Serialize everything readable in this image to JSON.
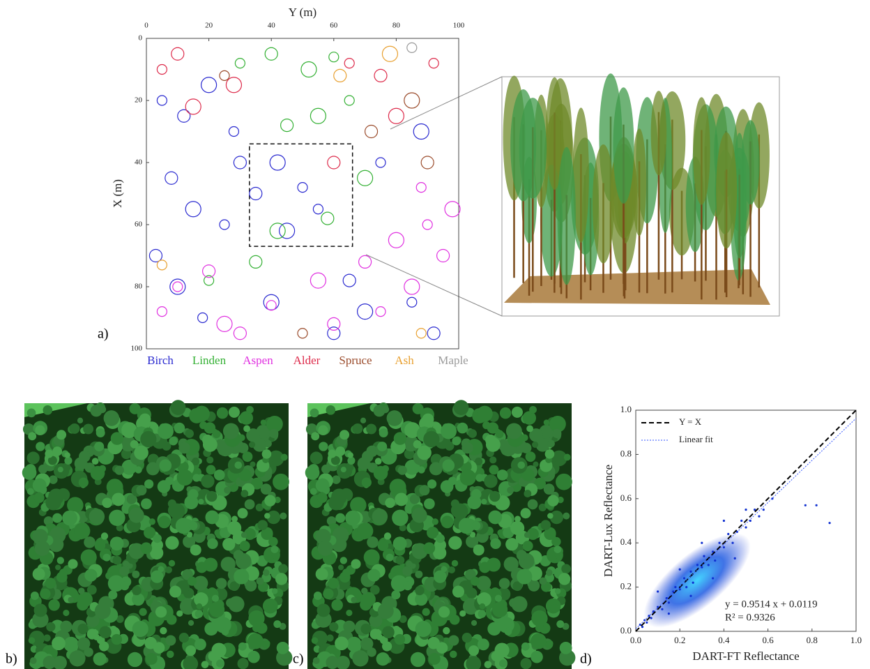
{
  "panel_labels": [
    "a)",
    "b)",
    "c)",
    "d)"
  ],
  "chart_data": [
    {
      "type": "scatter",
      "xlabel": "Y (m)",
      "ylabel": "X (m)",
      "xaxis_position": "top",
      "xlim": [
        0,
        100
      ],
      "xticks": [
        0,
        20,
        40,
        60,
        80,
        100
      ],
      "ylim": [
        100,
        0
      ],
      "yticks": [
        0,
        20,
        40,
        60,
        80,
        100
      ],
      "box": {
        "x": [
          33,
          66
        ],
        "y": [
          34,
          67
        ]
      },
      "series": [
        {
          "name": "Birch",
          "color": "#2a2ad0",
          "x": [
            5,
            12,
            20,
            28,
            8,
            15,
            25,
            35,
            42,
            50,
            3,
            10,
            18,
            60,
            70,
            85,
            92,
            45,
            55,
            30,
            88,
            75,
            65,
            40
          ],
          "values": [
            20,
            25,
            15,
            30,
            45,
            55,
            60,
            50,
            40,
            48,
            70,
            80,
            90,
            95,
            88,
            85,
            95,
            62,
            55,
            40,
            30,
            40,
            78,
            85
          ]
        },
        {
          "name": "Linden",
          "color": "#33b033",
          "x": [
            30,
            40,
            52,
            60,
            45,
            55,
            65,
            58,
            42,
            20,
            35,
            70
          ],
          "values": [
            8,
            5,
            10,
            6,
            28,
            25,
            20,
            58,
            62,
            78,
            72,
            45
          ]
        },
        {
          "name": "Aspen",
          "color": "#e030e0",
          "x": [
            10,
            20,
            25,
            5,
            70,
            80,
            90,
            95,
            85,
            75,
            60,
            55,
            40,
            30,
            98,
            88
          ],
          "values": [
            80,
            75,
            92,
            88,
            72,
            65,
            60,
            70,
            80,
            88,
            92,
            78,
            86,
            95,
            55,
            48
          ]
        },
        {
          "name": "Alder",
          "color": "#dd2a4a",
          "x": [
            5,
            10,
            15,
            65,
            75,
            80,
            92,
            60,
            28
          ],
          "values": [
            10,
            5,
            22,
            8,
            12,
            25,
            8,
            40,
            15
          ]
        },
        {
          "name": "Spruce",
          "color": "#9a4a2a",
          "x": [
            25,
            72,
            85,
            50,
            90
          ],
          "values": [
            12,
            30,
            20,
            95,
            40
          ]
        },
        {
          "name": "Ash",
          "color": "#e8a030",
          "x": [
            5,
            62,
            78,
            88
          ],
          "values": [
            73,
            12,
            5,
            95
          ]
        },
        {
          "name": "Maple",
          "color": "#9a9a9a",
          "x": [
            85
          ],
          "values": [
            3
          ]
        }
      ]
    },
    {
      "type": "scatter",
      "xlabel": "DART-FT Reflectance",
      "ylabel": "DART-Lux Reflectance",
      "xlim": [
        0,
        1
      ],
      "xticks": [
        {
          "value": 0,
          "label": "0.0"
        },
        {
          "value": 0.2,
          "label": "0.2"
        },
        {
          "value": 0.4,
          "label": "0.4"
        },
        {
          "value": 0.6,
          "label": "0.6"
        },
        {
          "value": 0.8,
          "label": "0.8"
        },
        {
          "value": 1,
          "label": "1.0"
        }
      ],
      "ylim": [
        0,
        1
      ],
      "yticks": [
        {
          "value": 0,
          "label": "0.0"
        },
        {
          "value": 0.2,
          "label": "0.2"
        },
        {
          "value": 0.4,
          "label": "0.4"
        },
        {
          "value": 0.6,
          "label": "0.6"
        },
        {
          "value": 0.8,
          "label": "0.8"
        },
        {
          "value": 1,
          "label": "1.0"
        }
      ],
      "points": {
        "color": "#1030d0",
        "x": [
          0.02,
          0.03,
          0.04,
          0.05,
          0.06,
          0.07,
          0.08,
          0.1,
          0.12,
          0.14,
          0.15,
          0.17,
          0.18,
          0.2,
          0.22,
          0.23,
          0.25,
          0.26,
          0.28,
          0.3,
          0.31,
          0.33,
          0.35,
          0.36,
          0.38,
          0.4,
          0.42,
          0.44,
          0.46,
          0.48,
          0.5,
          0.52,
          0.54,
          0.56,
          0.58,
          0.62,
          0.77,
          0.82,
          0.88,
          0.1,
          0.15,
          0.2,
          0.25,
          0.3,
          0.35,
          0.4,
          0.45,
          0.5
        ],
        "values": [
          0.03,
          0.02,
          0.05,
          0.04,
          0.07,
          0.06,
          0.09,
          0.11,
          0.1,
          0.15,
          0.13,
          0.18,
          0.2,
          0.19,
          0.24,
          0.2,
          0.27,
          0.22,
          0.3,
          0.29,
          0.34,
          0.3,
          0.36,
          0.32,
          0.4,
          0.38,
          0.44,
          0.4,
          0.45,
          0.5,
          0.47,
          0.5,
          0.55,
          0.52,
          0.55,
          0.6,
          0.57,
          0.57,
          0.49,
          0.18,
          0.08,
          0.28,
          0.16,
          0.4,
          0.24,
          0.5,
          0.33,
          0.55
        ]
      },
      "lines": [
        {
          "name": "Y = X",
          "color": "#000000",
          "style": "dashed"
        },
        {
          "name": "Linear fit",
          "color": "#3355ff",
          "style": "dotted",
          "slope": 0.9514,
          "intercept": 0.0119
        }
      ],
      "annotations": [
        "y = 0.9514 x + 0.0119",
        "R² = 0.9326"
      ]
    }
  ]
}
